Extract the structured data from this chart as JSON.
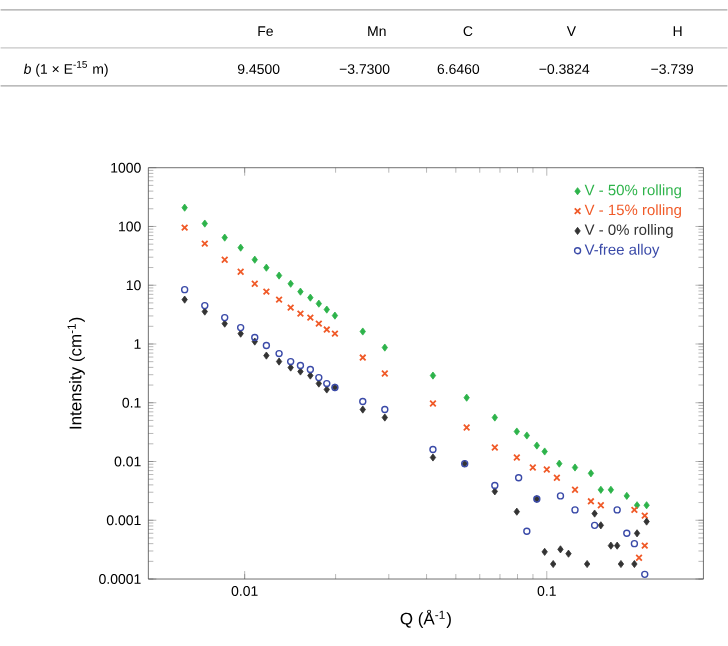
{
  "chart_data": {
    "type": "scatter",
    "xlabel": "Q (Å$^{-1}$)",
    "ylabel": "Intensity (cm$^{-1}$)",
    "log": "xy",
    "xlim": [
      0.0048,
      0.33
    ],
    "ylim": [
      0.0001,
      1000
    ],
    "xticks": [
      0.01,
      0.1
    ],
    "yticks": [
      0.0001,
      0.001,
      0.01,
      0.1,
      1,
      10,
      100,
      1000
    ],
    "legend": "top right",
    "grid": false,
    "annotations": [
      "Fe",
      "Mn",
      "C",
      "V",
      "H",
      "*b* (1 × E$^{-15}$ m)",
      "9.4500",
      "−3.7300",
      "6.6460",
      "−0.3824",
      "−3.739"
    ],
    "series": [
      {
        "name": "V - 50% rolling",
        "color": "#2db34a",
        "marker": "diamond",
        "x": [
          0.00633,
          0.00738,
          0.00859,
          0.0097,
          0.0108,
          0.0118,
          0.013,
          0.0142,
          0.0153,
          0.0165,
          0.0176,
          0.0187,
          0.0199,
          0.0246,
          0.0291,
          0.042,
          0.0543,
          0.0673,
          0.0796,
          0.0859,
          0.0927,
          0.0984,
          0.11,
          0.124,
          0.14,
          0.151,
          0.163,
          0.184,
          0.199,
          0.214
        ],
        "values": [
          209,
          112,
          64.6,
          43.6,
          27.2,
          19.9,
          14.6,
          10.6,
          7.78,
          6.15,
          4.86,
          3.85,
          3.04,
          1.63,
          0.869,
          0.29,
          0.122,
          0.056,
          0.0324,
          0.0277,
          0.0187,
          0.0148,
          0.0092,
          0.0079,
          0.0063,
          0.0033,
          0.0033,
          0.0026,
          0.0018,
          0.0018
        ]
      },
      {
        "name": "V - 15% rolling",
        "color": "#f05a28",
        "marker": "cross",
        "x": [
          0.00633,
          0.00738,
          0.00859,
          0.0097,
          0.0108,
          0.0118,
          0.013,
          0.0142,
          0.0153,
          0.0165,
          0.0176,
          0.0187,
          0.0199,
          0.0246,
          0.0291,
          0.042,
          0.0543,
          0.0673,
          0.0796,
          0.0899,
          0.1,
          0.108,
          0.124,
          0.14,
          0.151,
          0.171,
          0.195,
          0.211,
          0.211,
          0.202
        ],
        "values": [
          95.5,
          51,
          27.2,
          17,
          10.6,
          7.78,
          5.69,
          4.16,
          3.29,
          2.81,
          2.22,
          1.76,
          1.5,
          0.587,
          0.314,
          0.097,
          0.038,
          0.0173,
          0.0117,
          0.0079,
          0.0073,
          0.0053,
          0.0033,
          0.0021,
          0.0018,
          null,
          0.0015,
          0.0012,
          0.00037,
          0.00023
        ]
      },
      {
        "name": "V - 0% rolling",
        "color": "#333333",
        "marker": "diamond",
        "x": [
          0.00633,
          0.00738,
          0.00859,
          0.0097,
          0.0108,
          0.0118,
          0.013,
          0.0142,
          0.0153,
          0.0165,
          0.0176,
          0.0187,
          0.0199,
          0.0246,
          0.0291,
          0.042,
          0.0535,
          0.0673,
          0.0796,
          0.0927,
          0.0984,
          0.105,
          0.111,
          0.118,
          0.136,
          0.144,
          0.151,
          0.163,
          0.171,
          0.176,
          0.195,
          0.199,
          0.214
        ],
        "values": [
          5.69,
          3.56,
          2.22,
          1.5,
          1.1,
          0.635,
          0.502,
          0.397,
          0.34,
          0.29,
          0.212,
          0.168,
          0.182,
          0.0766,
          0.056,
          0.0117,
          0.0092,
          0.0031,
          0.0014,
          0.0023,
          0.00029,
          0.00018,
          0.00032,
          0.00027,
          0.00018,
          0.0013,
          0.00082,
          0.00037,
          0.00037,
          0.00018,
          0.00018,
          0.0006,
          0.00095
        ]
      },
      {
        "name": "V-free alloy",
        "color": "#3a4aa8",
        "marker": "circle",
        "x": [
          0.00633,
          0.00738,
          0.00859,
          0.0097,
          0.0108,
          0.0118,
          0.013,
          0.0142,
          0.0153,
          0.0165,
          0.0176,
          0.0187,
          0.0199,
          0.0246,
          0.0291,
          0.042,
          0.0535,
          0.0673,
          0.0807,
          0.0859,
          0.0927,
          0.111,
          0.124,
          0.144,
          0.171,
          0.184,
          0.195,
          0.211
        ],
        "values": [
          8.41,
          4.5,
          2.81,
          1.9,
          1.29,
          0.94,
          0.687,
          0.502,
          0.43,
          0.367,
          0.268,
          0.212,
          0.182,
          0.105,
          0.0766,
          0.016,
          0.0092,
          0.0039,
          0.0053,
          0.00065,
          0.0023,
          0.0026,
          0.0015,
          0.00082,
          0.0015,
          0.0006,
          0.0004,
          0.00012
        ]
      }
    ]
  }
}
